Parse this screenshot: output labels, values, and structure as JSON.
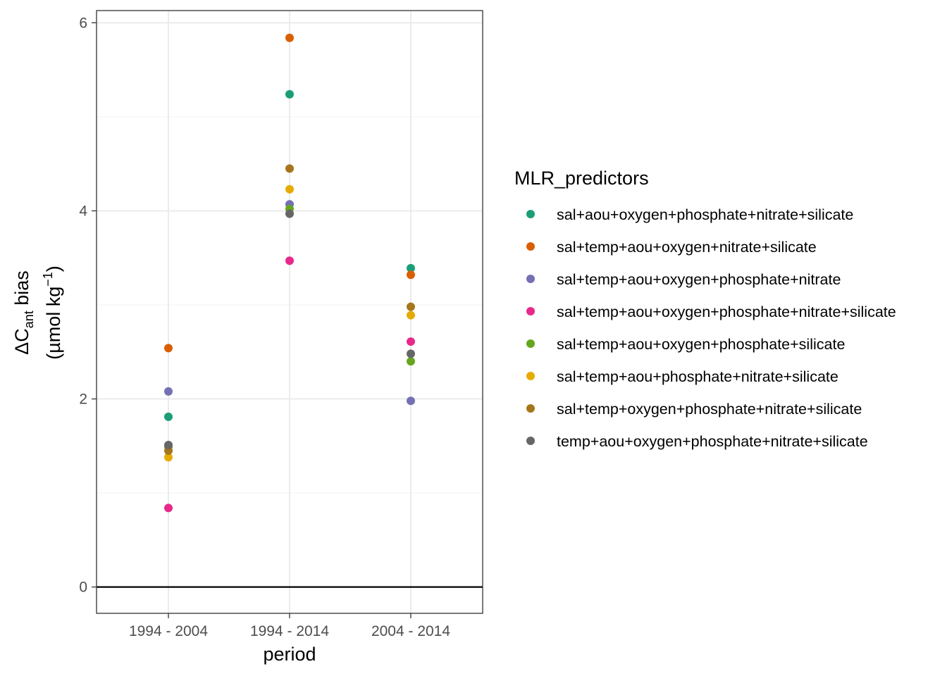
{
  "chart_data": {
    "type": "scatter",
    "title": "",
    "xlabel": "period",
    "ylabel": {
      "prefix": "ΔC",
      "subscript": "ant",
      "suffix": " bias",
      "unit_open": "(µmol kg",
      "unit_sup": "−1",
      "unit_close": ")"
    },
    "categories": [
      "1994 - 2004",
      "1994 - 2014",
      "2004 - 2014"
    ],
    "ylim": [
      -0.28,
      6.13
    ],
    "yticks": [
      0,
      2,
      4,
      6
    ],
    "y_tick_labels": [
      "0",
      "2",
      "4",
      "6"
    ],
    "hline": 0,
    "grid": true,
    "legend": {
      "title": "MLR_predictors",
      "position": "right"
    },
    "series": [
      {
        "name": "sal+aou+oxygen+phosphate+nitrate+silicate",
        "color": "#1B9E77",
        "values": [
          1.81,
          5.24,
          3.39
        ]
      },
      {
        "name": "sal+temp+aou+oxygen+nitrate+silicate",
        "color": "#D95F02",
        "values": [
          2.54,
          5.84,
          3.32
        ]
      },
      {
        "name": "sal+temp+aou+oxygen+phosphate+nitrate",
        "color": "#7570B3",
        "values": [
          2.08,
          4.07,
          1.98
        ]
      },
      {
        "name": "sal+temp+aou+oxygen+phosphate+nitrate+silicate",
        "color": "#E7298A",
        "values": [
          0.84,
          3.47,
          2.61
        ]
      },
      {
        "name": "sal+temp+aou+oxygen+phosphate+silicate",
        "color": "#66A61E",
        "values": [
          1.49,
          4.02,
          2.4
        ]
      },
      {
        "name": "sal+temp+aou+phosphate+nitrate+silicate",
        "color": "#E6AB02",
        "values": [
          1.38,
          4.23,
          2.89
        ]
      },
      {
        "name": "sal+temp+oxygen+phosphate+nitrate+silicate",
        "color": "#A6761D",
        "values": [
          1.45,
          4.45,
          2.98
        ]
      },
      {
        "name": "temp+aou+oxygen+phosphate+nitrate+silicate",
        "color": "#666666",
        "values": [
          1.51,
          3.97,
          2.48
        ]
      }
    ]
  }
}
